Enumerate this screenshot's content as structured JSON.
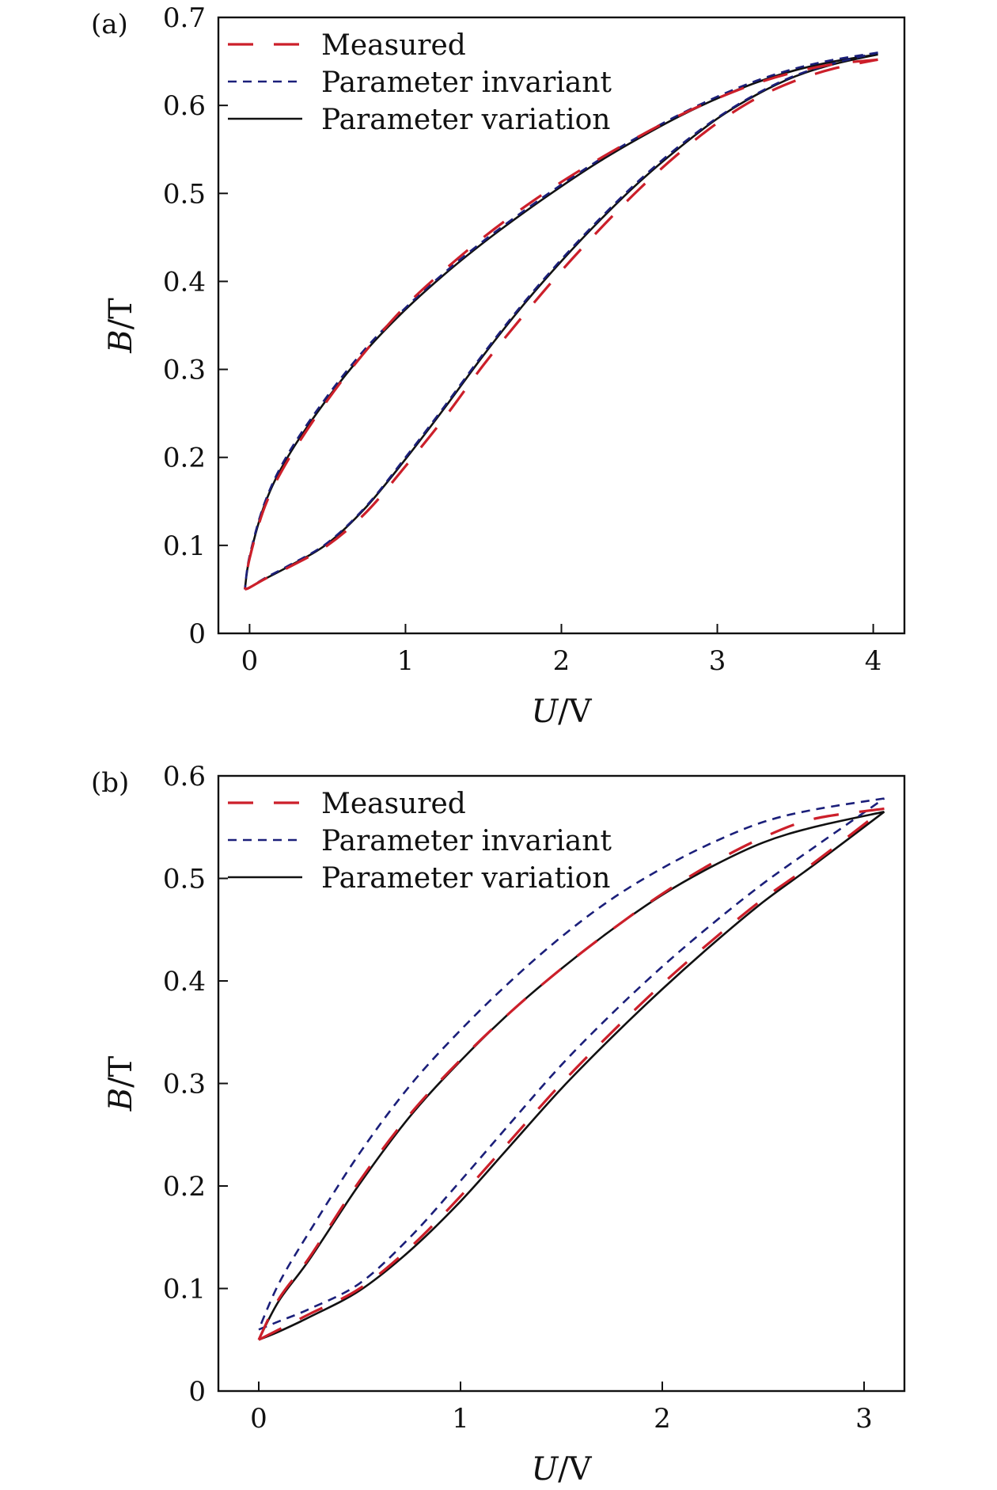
{
  "colors": {
    "measured": "#cc1f2a",
    "parameter_invariant": "#1b1f7a",
    "parameter_variation": "#111111"
  },
  "chart_data": [
    {
      "panel_label": "(a)",
      "type": "line",
      "xlabel_var": "U",
      "xlabel_unit": "/V",
      "ylabel_var": "B",
      "ylabel_unit": "/T",
      "xlim": [
        -0.2,
        4.2
      ],
      "ylim": [
        0,
        0.7
      ],
      "xticks": [
        0,
        1,
        2,
        3,
        4
      ],
      "yticks": [
        0,
        0.1,
        0.2,
        0.3,
        0.4,
        0.5,
        0.6,
        0.7
      ],
      "xtick_labels": [
        "0",
        "1",
        "2",
        "3",
        "4"
      ],
      "ytick_labels": [
        "0",
        "0.1",
        "0.2",
        "0.3",
        "0.4",
        "0.5",
        "0.6",
        "0.7"
      ],
      "legend_position": "top-left",
      "grid": false,
      "series": [
        {
          "name": "Measured",
          "style": "long-dash",
          "branches": [
            {
              "x": [
                -0.03,
                0.0,
                0.1,
                0.25,
                0.5,
                0.75,
                1.0,
                1.25,
                1.5,
                1.75,
                2.0,
                2.25,
                2.5,
                2.75,
                3.0,
                3.25,
                3.5,
                3.75,
                4.03
              ],
              "y": [
                0.05,
                0.052,
                0.062,
                0.075,
                0.1,
                0.138,
                0.19,
                0.245,
                0.305,
                0.36,
                0.412,
                0.46,
                0.505,
                0.545,
                0.58,
                0.608,
                0.628,
                0.642,
                0.652
              ]
            },
            {
              "x": [
                4.03,
                3.75,
                3.5,
                3.25,
                3.0,
                2.75,
                2.5,
                2.25,
                2.0,
                1.75,
                1.5,
                1.25,
                1.0,
                0.75,
                0.5,
                0.25,
                0.1,
                0.0,
                -0.03
              ],
              "y": [
                0.652,
                0.647,
                0.638,
                0.625,
                0.608,
                0.588,
                0.565,
                0.54,
                0.513,
                0.483,
                0.45,
                0.413,
                0.372,
                0.322,
                0.265,
                0.198,
                0.145,
                0.085,
                0.05
              ]
            }
          ]
        },
        {
          "name": "Parameter invariant",
          "style": "short-dash",
          "branches": [
            {
              "x": [
                -0.03,
                0.0,
                0.1,
                0.25,
                0.5,
                0.75,
                1.0,
                1.25,
                1.5,
                1.75,
                2.0,
                2.25,
                2.5,
                2.75,
                3.0,
                3.25,
                3.5,
                3.75,
                4.03
              ],
              "y": [
                0.05,
                0.052,
                0.063,
                0.077,
                0.103,
                0.145,
                0.2,
                0.258,
                0.318,
                0.374,
                0.425,
                0.472,
                0.515,
                0.553,
                0.586,
                0.613,
                0.634,
                0.648,
                0.66
              ]
            },
            {
              "x": [
                4.03,
                3.75,
                3.5,
                3.25,
                3.0,
                2.75,
                2.5,
                2.25,
                2.0,
                1.75,
                1.5,
                1.25,
                1.0,
                0.75,
                0.5,
                0.25,
                0.1,
                0.0,
                -0.03
              ],
              "y": [
                0.66,
                0.652,
                0.642,
                0.628,
                0.61,
                0.589,
                0.565,
                0.539,
                0.51,
                0.479,
                0.446,
                0.41,
                0.37,
                0.325,
                0.27,
                0.205,
                0.15,
                0.088,
                0.05
              ]
            }
          ]
        },
        {
          "name": "Parameter variation",
          "style": "solid",
          "branches": [
            {
              "x": [
                -0.03,
                0.0,
                0.1,
                0.25,
                0.5,
                0.75,
                1.0,
                1.25,
                1.5,
                1.75,
                2.0,
                2.25,
                2.5,
                2.75,
                3.0,
                3.25,
                3.5,
                3.75,
                4.03
              ],
              "y": [
                0.05,
                0.052,
                0.062,
                0.076,
                0.102,
                0.144,
                0.198,
                0.256,
                0.316,
                0.372,
                0.423,
                0.47,
                0.513,
                0.551,
                0.585,
                0.612,
                0.633,
                0.647,
                0.658
              ]
            },
            {
              "x": [
                4.03,
                3.75,
                3.5,
                3.25,
                3.0,
                2.75,
                2.5,
                2.25,
                2.0,
                1.75,
                1.5,
                1.25,
                1.0,
                0.75,
                0.5,
                0.25,
                0.1,
                0.0,
                -0.03
              ],
              "y": [
                0.658,
                0.65,
                0.64,
                0.626,
                0.608,
                0.587,
                0.563,
                0.537,
                0.508,
                0.477,
                0.444,
                0.408,
                0.368,
                0.322,
                0.267,
                0.202,
                0.148,
                0.086,
                0.05
              ]
            }
          ]
        }
      ]
    },
    {
      "panel_label": "(b)",
      "type": "line",
      "xlabel_var": "U",
      "xlabel_unit": "/V",
      "ylabel_var": "B",
      "ylabel_unit": "/T",
      "xlim": [
        -0.2,
        3.2
      ],
      "ylim": [
        0,
        0.6
      ],
      "xticks": [
        0,
        1,
        2,
        3
      ],
      "yticks": [
        0,
        0.1,
        0.2,
        0.3,
        0.4,
        0.5,
        0.6
      ],
      "xtick_labels": [
        "0",
        "1",
        "2",
        "3"
      ],
      "ytick_labels": [
        "0",
        "0.1",
        "0.2",
        "0.3",
        "0.4",
        "0.5",
        "0.6"
      ],
      "legend_position": "top-left",
      "grid": false,
      "series": [
        {
          "name": "Measured",
          "style": "long-dash",
          "branches": [
            {
              "x": [
                0.0,
                0.1,
                0.25,
                0.5,
                0.75,
                1.0,
                1.25,
                1.5,
                1.75,
                2.0,
                2.25,
                2.5,
                2.75,
                3.1
              ],
              "y": [
                0.05,
                0.06,
                0.075,
                0.1,
                0.14,
                0.19,
                0.245,
                0.3,
                0.35,
                0.397,
                0.44,
                0.48,
                0.515,
                0.568
              ]
            },
            {
              "x": [
                3.1,
                2.75,
                2.5,
                2.25,
                2.0,
                1.75,
                1.5,
                1.25,
                1.0,
                0.75,
                0.5,
                0.25,
                0.1,
                0.0
              ],
              "y": [
                0.568,
                0.558,
                0.54,
                0.515,
                0.485,
                0.45,
                0.412,
                0.37,
                0.323,
                0.27,
                0.205,
                0.13,
                0.09,
                0.05
              ]
            }
          ]
        },
        {
          "name": "Parameter invariant",
          "style": "short-dash",
          "branches": [
            {
              "x": [
                0.0,
                0.1,
                0.25,
                0.5,
                0.75,
                1.0,
                1.25,
                1.5,
                1.75,
                2.0,
                2.25,
                2.5,
                2.75,
                3.1
              ],
              "y": [
                0.06,
                0.068,
                0.08,
                0.105,
                0.15,
                0.205,
                0.262,
                0.318,
                0.368,
                0.414,
                0.456,
                0.495,
                0.53,
                0.578
              ]
            },
            {
              "x": [
                3.1,
                2.75,
                2.5,
                2.25,
                2.0,
                1.75,
                1.5,
                1.25,
                1.0,
                0.75,
                0.5,
                0.25,
                0.1,
                0.0
              ],
              "y": [
                0.578,
                0.567,
                0.555,
                0.535,
                0.51,
                0.48,
                0.443,
                0.4,
                0.352,
                0.298,
                0.232,
                0.155,
                0.105,
                0.06
              ]
            }
          ]
        },
        {
          "name": "Parameter variation",
          "style": "solid",
          "branches": [
            {
              "x": [
                0.0,
                0.1,
                0.25,
                0.5,
                0.75,
                1.0,
                1.25,
                1.5,
                1.75,
                2.0,
                2.25,
                2.5,
                2.75,
                3.1
              ],
              "y": [
                0.05,
                0.058,
                0.072,
                0.098,
                0.137,
                0.185,
                0.24,
                0.295,
                0.345,
                0.392,
                0.436,
                0.477,
                0.513,
                0.565
              ]
            },
            {
              "x": [
                3.1,
                2.75,
                2.5,
                2.25,
                2.0,
                1.75,
                1.5,
                1.25,
                1.0,
                0.75,
                0.5,
                0.25,
                0.1,
                0.0
              ],
              "y": [
                0.565,
                0.55,
                0.535,
                0.512,
                0.484,
                0.45,
                0.412,
                0.37,
                0.322,
                0.268,
                0.202,
                0.128,
                0.088,
                0.05
              ]
            }
          ]
        }
      ]
    }
  ]
}
